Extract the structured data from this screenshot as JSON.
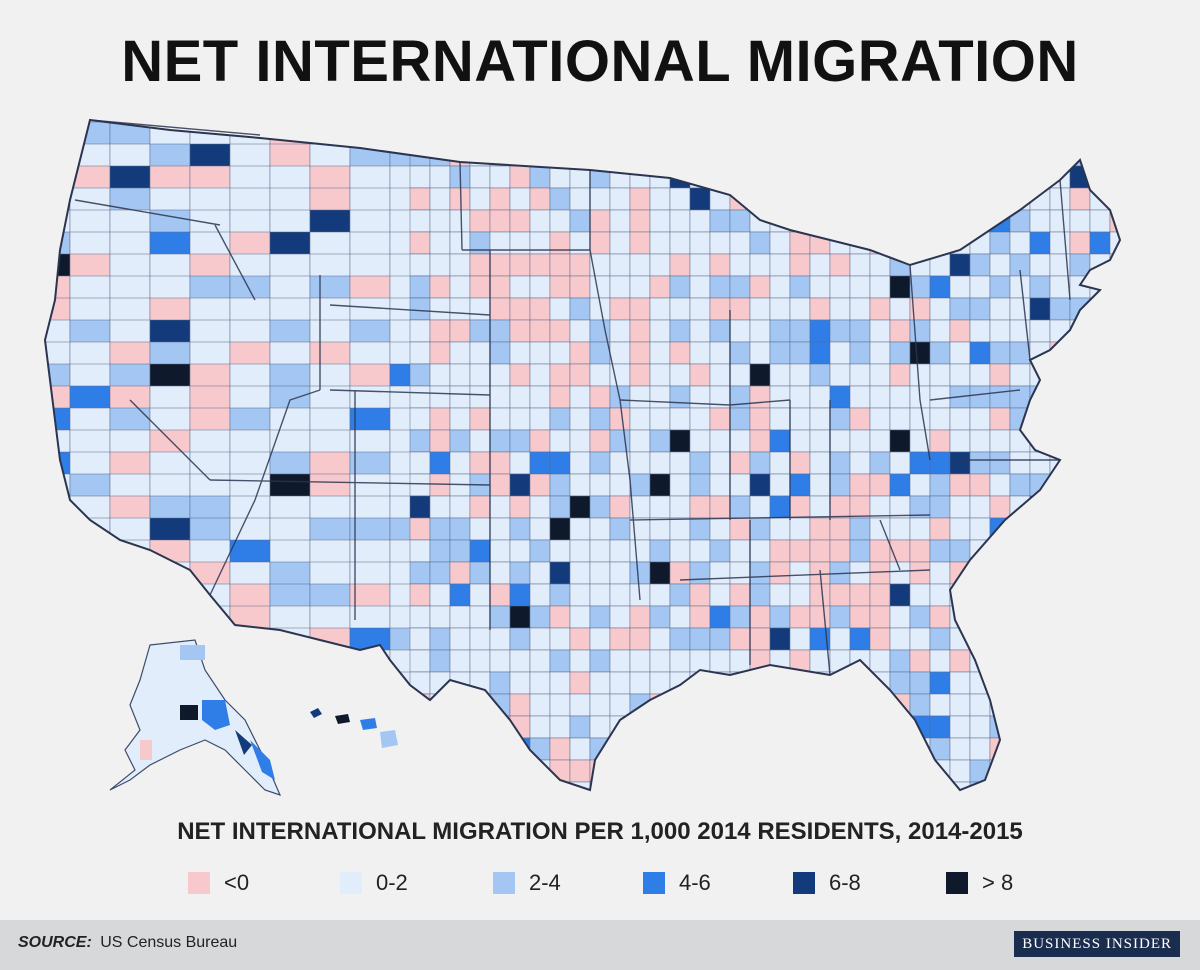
{
  "title": "NET INTERNATIONAL MIGRATION",
  "subtitle": "NET INTERNATIONAL MIGRATION PER 1,000 2014 RESIDENTS, 2014-2015",
  "legend": [
    {
      "label": "<0",
      "color": "#f7c9cc"
    },
    {
      "label": "0-2",
      "color": "#e2edfb"
    },
    {
      "label": "2-4",
      "color": "#a3c6f3"
    },
    {
      "label": "4-6",
      "color": "#2f7ee8"
    },
    {
      "label": "6-8",
      "color": "#133a7a"
    },
    {
      "label": "> 8",
      "color": "#0e1a2c"
    }
  ],
  "footer": {
    "source_label": "SOURCE:",
    "source_text": "US Census Bureau",
    "brand": "BUSINESS INSIDER"
  }
}
